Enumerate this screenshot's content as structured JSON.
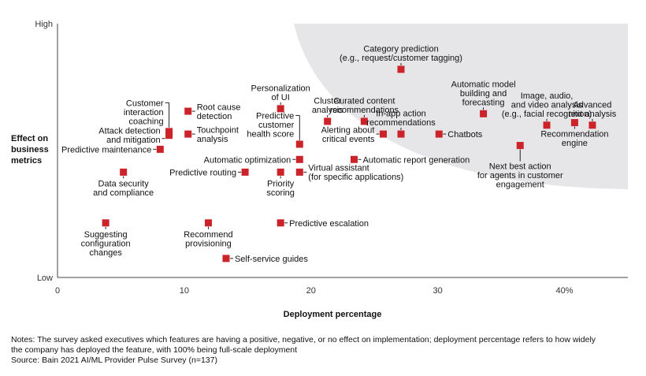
{
  "chart_data": {
    "type": "scatter",
    "title": "",
    "xlabel": "Deployment percentage",
    "ylabel": [
      "Effect on",
      "business",
      "metrics"
    ],
    "x_ticks": [
      {
        "value": 0,
        "label": "0"
      },
      {
        "value": 10,
        "label": "10"
      },
      {
        "value": 20,
        "label": "20"
      },
      {
        "value": 30,
        "label": "30"
      },
      {
        "value": 40,
        "label": "40%"
      }
    ],
    "y_ticks": [
      {
        "value": 0,
        "label": "Low"
      },
      {
        "value": 1,
        "label": "High"
      }
    ],
    "xlim": [
      0,
      45
    ],
    "ylim": [
      0,
      1
    ],
    "grid": false,
    "shaded_region": "upper-right",
    "marker_color": "#cc2229",
    "shade_color": "#e6e6e8",
    "points": [
      {
        "x": 3.8,
        "y": 0.215,
        "label": [
          "Suggesting",
          "configuration",
          "changes"
        ],
        "lpos": "below"
      },
      {
        "x": 5.2,
        "y": 0.415,
        "label": [
          "Data security",
          "and compliance"
        ],
        "lpos": "below"
      },
      {
        "x": 8.1,
        "y": 0.505,
        "label": [
          "Predictive maintenance"
        ],
        "lpos": "left"
      },
      {
        "x": 8.8,
        "y": 0.56,
        "label": [
          "Attack detection",
          "and mitigation"
        ],
        "lpos": "left-lower"
      },
      {
        "x": 8.8,
        "y": 0.575,
        "label": [
          "Customer",
          "interaction",
          "coaching"
        ],
        "lpos": "upper-left-bracket"
      },
      {
        "x": 10.3,
        "y": 0.655,
        "label": [
          "Root cause",
          "detection"
        ],
        "lpos": "right"
      },
      {
        "x": 10.3,
        "y": 0.565,
        "label": [
          "Touchpoint",
          "analysis"
        ],
        "lpos": "right"
      },
      {
        "x": 11.9,
        "y": 0.215,
        "label": [
          "Recommend",
          "provisioning"
        ],
        "lpos": "below"
      },
      {
        "x": 13.3,
        "y": 0.075,
        "label": [
          "Self-service guides"
        ],
        "lpos": "right"
      },
      {
        "x": 14.8,
        "y": 0.415,
        "label": [
          "Predictive routing"
        ],
        "lpos": "left"
      },
      {
        "x": 17.6,
        "y": 0.665,
        "label": [
          "Personalization",
          "of UI"
        ],
        "lpos": "above"
      },
      {
        "x": 17.6,
        "y": 0.415,
        "label": [
          "Priority",
          "scoring"
        ],
        "lpos": "below"
      },
      {
        "x": 17.6,
        "y": 0.215,
        "label": [
          "Predictive escalation"
        ],
        "lpos": "right"
      },
      {
        "x": 19.1,
        "y": 0.525,
        "label": [
          "Predictive",
          "customer",
          "health score"
        ],
        "lpos": "upper-left-bracket"
      },
      {
        "x": 19.1,
        "y": 0.465,
        "label": [
          "Automatic optimization"
        ],
        "lpos": "left"
      },
      {
        "x": 19.1,
        "y": 0.415,
        "label": [
          "Virtual assistant",
          "(for specific applications)"
        ],
        "lpos": "right"
      },
      {
        "x": 21.3,
        "y": 0.615,
        "label": [
          "Cluster",
          "analysis"
        ],
        "lpos": "above"
      },
      {
        "x": 23.4,
        "y": 0.465,
        "label": [
          "Automatic report generation"
        ],
        "lpos": "right"
      },
      {
        "x": 24.2,
        "y": 0.615,
        "label": [
          "Curated content",
          "recommendations"
        ],
        "lpos": "above"
      },
      {
        "x": 25.7,
        "y": 0.565,
        "label": [
          "Alerting about",
          "critical events"
        ],
        "lpos": "left"
      },
      {
        "x": 27.1,
        "y": 0.82,
        "label": [
          "Category prediction",
          "(e.g., request/customer tagging)"
        ],
        "lpos": "above"
      },
      {
        "x": 27.1,
        "y": 0.565,
        "label": [
          "In-app action",
          "recommendations"
        ],
        "lpos": "above"
      },
      {
        "x": 30.1,
        "y": 0.565,
        "label": [
          "Chatbots"
        ],
        "lpos": "right"
      },
      {
        "x": 33.6,
        "y": 0.645,
        "label": [
          "Automatic model",
          "building and",
          "forecasting"
        ],
        "lpos": "above"
      },
      {
        "x": 36.5,
        "y": 0.52,
        "label": [
          "Next best action",
          "for agents in customer",
          "engagement"
        ],
        "lpos": "below"
      },
      {
        "x": 38.6,
        "y": 0.6,
        "label": [
          "Image, audio,",
          "and video analysis",
          "(e.g., facial recognition)"
        ],
        "lpos": "above"
      },
      {
        "x": 40.8,
        "y": 0.61,
        "label": [
          "Recommendation",
          "engine"
        ],
        "lpos": "below"
      },
      {
        "x": 42.2,
        "y": 0.6,
        "label": [
          "Advanced",
          "text analysis"
        ],
        "lpos": "above"
      }
    ]
  },
  "notes": {
    "line1": "Notes: The survey asked executives which features are having a positive, negative, or no effect on implementation; deployment percentage refers to how widely",
    "line2": "the company has deployed the feature, with 100% being full-scale deployment",
    "source": "Source: Bain 2021 AI/ML Provider Pulse Survey (n=137)"
  }
}
